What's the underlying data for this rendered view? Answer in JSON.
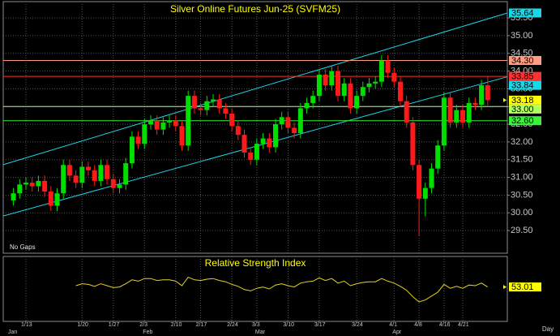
{
  "chart_data": [
    {
      "type": "candlestick",
      "title": "Silver Online Futures Jun-25 (SVFM25)",
      "annotation": "No Gaps",
      "x_label": "Day",
      "categories": [
        null,
        null,
        "1/13",
        null,
        null,
        null,
        null,
        null,
        null,
        null,
        null,
        "1/20",
        null,
        null,
        null,
        null,
        "1/27",
        null,
        null,
        null,
        null,
        "2/3",
        null,
        null,
        null,
        null,
        "2/10",
        null,
        null,
        null,
        "2/17",
        null,
        null,
        null,
        null,
        "2/24",
        null,
        null,
        null,
        "3/3",
        null,
        null,
        null,
        null,
        "3/10",
        null,
        null,
        null,
        null,
        "3/17",
        null,
        null,
        null,
        null,
        null,
        "3/24",
        null,
        null,
        null,
        null,
        null,
        "4/1",
        null,
        null,
        null,
        "4/8",
        null,
        null,
        null,
        "4/16",
        null,
        null,
        "4/21",
        null,
        null,
        null,
        null
      ],
      "month_labels": [
        "Jan",
        "Feb",
        "Mar",
        "Apr"
      ],
      "open": [
        30.35,
        30.55,
        30.8,
        30.85,
        30.75,
        30.9,
        30.6,
        30.2,
        30.55,
        31.35,
        31.05,
        30.85,
        31.3,
        31.2,
        30.9,
        31.35,
        30.95,
        30.7,
        30.8,
        31.4,
        32.15,
        31.95,
        32.5,
        32.6,
        32.35,
        32.55,
        32.6,
        32.45,
        31.9,
        33.3,
        32.95,
        32.9,
        33.15,
        33.2,
        32.95,
        32.8,
        32.45,
        32.2,
        31.7,
        31.5,
        31.95,
        32.1,
        31.85,
        32.5,
        32.7,
        32.4,
        32.25,
        32.95,
        33.1,
        33.3,
        33.9,
        33.6,
        34.0,
        33.3,
        33.65,
        32.95,
        33.3,
        33.55,
        33.65,
        33.7,
        34.3,
        33.95,
        33.7,
        33.15,
        32.55,
        31.35,
        30.4,
        30.7,
        31.25,
        31.9,
        33.25,
        32.55,
        32.9,
        32.55,
        33.1,
        33.05,
        33.6
      ],
      "high": [
        30.7,
        30.95,
        31.0,
        31.0,
        31.05,
        31.05,
        30.75,
        30.7,
        31.5,
        31.5,
        31.2,
        31.45,
        31.45,
        31.35,
        31.5,
        31.5,
        31.1,
        30.95,
        31.55,
        32.3,
        32.3,
        32.65,
        32.75,
        32.75,
        32.7,
        32.75,
        32.75,
        32.6,
        33.45,
        33.45,
        33.1,
        33.3,
        33.35,
        33.35,
        33.1,
        32.95,
        32.6,
        32.35,
        31.85,
        32.1,
        32.25,
        32.25,
        32.65,
        32.85,
        32.85,
        32.55,
        33.1,
        33.25,
        33.45,
        34.05,
        34.05,
        34.15,
        34.15,
        33.8,
        33.8,
        33.45,
        33.7,
        33.8,
        33.85,
        34.45,
        34.45,
        34.1,
        33.85,
        33.3,
        32.7,
        31.5,
        30.85,
        31.4,
        32.05,
        33.4,
        33.4,
        33.05,
        33.05,
        33.25,
        33.25,
        33.75,
        33.85
      ],
      "low": [
        30.2,
        30.4,
        30.65,
        30.6,
        30.6,
        30.45,
        30.05,
        30.05,
        30.4,
        30.9,
        30.7,
        30.7,
        31.05,
        30.75,
        30.75,
        30.8,
        30.55,
        30.55,
        30.65,
        31.25,
        31.8,
        31.8,
        32.35,
        32.2,
        32.2,
        32.4,
        32.3,
        31.75,
        31.75,
        32.8,
        32.75,
        32.75,
        33.0,
        32.8,
        32.65,
        32.3,
        32.05,
        31.55,
        31.35,
        31.35,
        31.8,
        31.7,
        31.7,
        32.35,
        32.25,
        32.1,
        32.1,
        32.8,
        32.95,
        33.15,
        33.45,
        33.45,
        33.15,
        33.15,
        32.8,
        32.8,
        33.15,
        33.4,
        33.5,
        33.55,
        33.8,
        33.55,
        33.0,
        32.4,
        31.2,
        29.35,
        29.9,
        30.55,
        31.1,
        31.75,
        32.4,
        32.4,
        32.4,
        32.4,
        32.9,
        32.9,
        33.03
      ],
      "close": [
        30.55,
        30.8,
        30.85,
        30.75,
        30.9,
        30.6,
        30.2,
        30.55,
        31.35,
        31.05,
        30.85,
        31.3,
        31.2,
        30.9,
        31.35,
        30.95,
        30.7,
        30.8,
        31.4,
        32.15,
        31.95,
        32.5,
        32.6,
        32.35,
        32.55,
        32.6,
        32.45,
        31.9,
        33.3,
        32.95,
        32.9,
        33.15,
        33.2,
        32.95,
        32.8,
        32.45,
        32.2,
        31.7,
        31.5,
        31.95,
        32.1,
        31.85,
        32.5,
        32.7,
        32.4,
        32.25,
        32.95,
        33.1,
        33.3,
        33.9,
        33.6,
        34.0,
        33.3,
        33.65,
        32.95,
        33.3,
        33.55,
        33.65,
        33.7,
        34.3,
        33.95,
        33.7,
        33.15,
        32.55,
        31.35,
        30.4,
        30.7,
        31.25,
        31.9,
        33.25,
        32.55,
        32.9,
        32.55,
        33.1,
        33.05,
        33.6,
        33.18
      ],
      "up_color": "#00e000",
      "down_color": "#ff1a1a",
      "ylim": [
        28.86,
        35.96
      ],
      "yticks": [
        {
          "value": 29.5,
          "label": "29.50"
        },
        {
          "value": 30,
          "label": "30.00"
        },
        {
          "value": 30.5,
          "label": "30.50"
        },
        {
          "value": 31,
          "label": "31.00"
        },
        {
          "value": 31.5,
          "label": "31.50"
        },
        {
          "value": 32,
          "label": "32.00"
        },
        {
          "value": 32.5,
          "label": "32.50"
        },
        {
          "value": 33,
          "label": "33.00"
        },
        {
          "value": 33.5,
          "label": "33.50"
        },
        {
          "value": 34,
          "label": "34.00"
        },
        {
          "value": 34.5,
          "label": "34.50"
        },
        {
          "value": 35,
          "label": "35.00"
        },
        {
          "value": 35.5,
          "label": "35.50"
        }
      ],
      "grid": true,
      "levels": [
        {
          "value": 34.3,
          "label": "34.30",
          "color": "#ff9c84"
        },
        {
          "value": 33.85,
          "label": "33.85",
          "color": "#ff3030"
        },
        {
          "value": 33.0,
          "label": "33.00",
          "color": "#b4ff64"
        },
        {
          "value": 32.6,
          "label": "32.60",
          "color": "#3cf03c"
        }
      ],
      "channels": [
        {
          "start": 31.36,
          "end": {
            "value": 35.64,
            "label": "35.64"
          },
          "color": "#19d7e6"
        },
        {
          "start": 29.91,
          "end": {
            "value": 33.84,
            "label": "33.84"
          },
          "color": "#19d7e6"
        }
      ],
      "last_price": {
        "value": 33.18,
        "label": "33.18",
        "color": "#ffff00"
      }
    },
    {
      "type": "line",
      "title": "Relative Strength Index",
      "values": [
        null,
        null,
        null,
        null,
        null,
        null,
        null,
        null,
        null,
        null,
        55,
        58,
        57,
        54,
        58,
        55,
        52,
        53,
        58,
        64,
        62,
        66,
        66,
        63,
        64,
        64,
        62,
        55,
        68,
        64,
        63,
        65,
        66,
        63,
        61,
        57,
        54,
        49,
        47,
        51,
        53,
        50,
        56,
        58,
        55,
        53,
        59,
        61,
        62,
        67,
        63,
        66,
        59,
        62,
        55,
        58,
        60,
        61,
        61,
        66,
        62,
        59,
        54,
        48,
        38,
        30,
        33,
        39,
        45,
        57,
        51,
        54,
        51,
        56,
        55,
        59,
        53.01
      ],
      "color": "#e6d21e",
      "ylim": [
        0,
        100
      ],
      "end_label": {
        "value": 53.01,
        "label": "53.01",
        "color": "#ffff00"
      }
    }
  ]
}
